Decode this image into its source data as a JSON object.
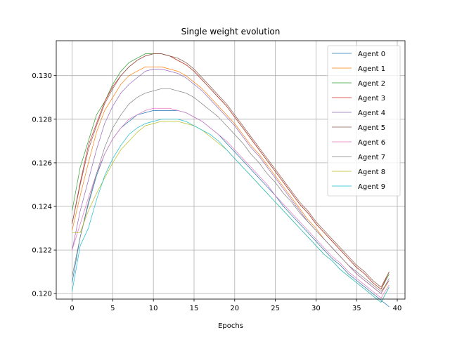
{
  "chart_data": {
    "type": "line",
    "title": "Single weight evolution",
    "xlabel": "Epochs",
    "ylabel": "",
    "xlim": [
      -1.95,
      40.95
    ],
    "ylim": [
      0.11975,
      0.1316
    ],
    "xticks": [
      0,
      5,
      10,
      15,
      20,
      25,
      30,
      35,
      40
    ],
    "yticks": [
      0.12,
      0.122,
      0.124,
      0.126,
      0.128,
      0.13
    ],
    "ytick_labels": [
      "0.120",
      "0.122",
      "0.124",
      "0.126",
      "0.128",
      "0.130"
    ],
    "grid": true,
    "legend_position": "upper right",
    "x": [
      0,
      1,
      2,
      3,
      4,
      5,
      6,
      7,
      8,
      9,
      10,
      11,
      12,
      13,
      14,
      15,
      16,
      17,
      18,
      19,
      20,
      21,
      22,
      23,
      24,
      25,
      26,
      27,
      28,
      29,
      30,
      31,
      32,
      33,
      34,
      35,
      36,
      37,
      38,
      39
    ],
    "series": [
      {
        "name": "Agent 0",
        "color": "#1f77b4",
        "values": [
          0.1205,
          0.1226,
          0.1241,
          0.1254,
          0.1264,
          0.1271,
          0.1276,
          0.1279,
          0.1282,
          0.1283,
          0.1284,
          0.1284,
          0.1284,
          0.1284,
          0.1283,
          0.1281,
          0.1279,
          0.1276,
          0.1273,
          0.1269,
          0.1265,
          0.1261,
          0.1257,
          0.1253,
          0.1249,
          0.1245,
          0.124,
          0.1236,
          0.1232,
          0.1228,
          0.1224,
          0.122,
          0.1216,
          0.1213,
          0.1209,
          0.1206,
          0.1203,
          0.12,
          0.1197,
          0.1194
        ]
      },
      {
        "name": "Agent 1",
        "color": "#ff7f0e",
        "values": [
          0.1229,
          0.1245,
          0.126,
          0.1274,
          0.1284,
          0.129,
          0.1296,
          0.13,
          0.1302,
          0.1304,
          0.1304,
          0.1304,
          0.1303,
          0.1302,
          0.13,
          0.1297,
          0.1294,
          0.129,
          0.1286,
          0.1282,
          0.1278,
          0.1273,
          0.1268,
          0.1264,
          0.1259,
          0.1254,
          0.1249,
          0.1244,
          0.1239,
          0.1234,
          0.123,
          0.1225,
          0.1221,
          0.1217,
          0.1213,
          0.1209,
          0.1206,
          0.1203,
          0.12,
          0.1206
        ]
      },
      {
        "name": "Agent 2",
        "color": "#2ca02c",
        "values": [
          0.1238,
          0.1258,
          0.127,
          0.1282,
          0.1288,
          0.1296,
          0.1302,
          0.1306,
          0.1308,
          0.131,
          0.131,
          0.131,
          0.1309,
          0.1307,
          0.1305,
          0.1302,
          0.1298,
          0.1294,
          0.129,
          0.1286,
          0.1281,
          0.1276,
          0.1271,
          0.1266,
          0.1261,
          0.1256,
          0.1251,
          0.1246,
          0.1241,
          0.1237,
          0.1232,
          0.1228,
          0.1224,
          0.122,
          0.1216,
          0.1212,
          0.1209,
          0.1205,
          0.1202,
          0.1209
        ]
      },
      {
        "name": "Agent 3",
        "color": "#d62728",
        "values": [
          0.1232,
          0.1251,
          0.1268,
          0.1278,
          0.1288,
          0.1295,
          0.13,
          0.1304,
          0.1307,
          0.1309,
          0.131,
          0.131,
          0.1309,
          0.1307,
          0.1305,
          0.1302,
          0.1298,
          0.1294,
          0.129,
          0.1286,
          0.1281,
          0.1276,
          0.1271,
          0.1266,
          0.1261,
          0.1256,
          0.1251,
          0.1246,
          0.1241,
          0.1237,
          0.1232,
          0.1228,
          0.1224,
          0.122,
          0.1216,
          0.1212,
          0.1209,
          0.1205,
          0.1202,
          0.121
        ]
      },
      {
        "name": "Agent 4",
        "color": "#9467bd",
        "values": [
          0.122,
          0.1238,
          0.1252,
          0.1266,
          0.1278,
          0.1286,
          0.1292,
          0.1296,
          0.1299,
          0.1302,
          0.1303,
          0.1303,
          0.1302,
          0.1301,
          0.1299,
          0.1296,
          0.1293,
          0.1289,
          0.1285,
          0.1281,
          0.1277,
          0.1272,
          0.1267,
          0.1263,
          0.1258,
          0.1253,
          0.1248,
          0.1243,
          0.1238,
          0.1233,
          0.1229,
          0.1225,
          0.1221,
          0.1217,
          0.1213,
          0.1209,
          0.1206,
          0.1203,
          0.12,
          0.1207
        ]
      },
      {
        "name": "Agent 5",
        "color": "#8c564b",
        "values": [
          0.1232,
          0.125,
          0.1266,
          0.1277,
          0.1287,
          0.1294,
          0.13,
          0.1304,
          0.1307,
          0.1309,
          0.131,
          0.131,
          0.1309,
          0.1308,
          0.1306,
          0.1303,
          0.1299,
          0.1295,
          0.1291,
          0.1287,
          0.1282,
          0.1277,
          0.1272,
          0.1267,
          0.1262,
          0.1257,
          0.1252,
          0.1247,
          0.1242,
          0.1238,
          0.1233,
          0.1229,
          0.1225,
          0.1221,
          0.1217,
          0.1213,
          0.121,
          0.1206,
          0.1203,
          0.121
        ]
      },
      {
        "name": "Agent 6",
        "color": "#e377c2",
        "values": [
          0.122,
          0.1232,
          0.1244,
          0.1255,
          0.1264,
          0.1271,
          0.1276,
          0.128,
          0.1282,
          0.1284,
          0.1285,
          0.1285,
          0.1285,
          0.1284,
          0.1283,
          0.1281,
          0.1279,
          0.1276,
          0.1273,
          0.127,
          0.1266,
          0.1262,
          0.1258,
          0.1254,
          0.125,
          0.1245,
          0.1241,
          0.1237,
          0.1233,
          0.1229,
          0.1225,
          0.1221,
          0.1217,
          0.1214,
          0.121,
          0.1207,
          0.1204,
          0.1201,
          0.1198,
          0.1204
        ]
      },
      {
        "name": "Agent 7",
        "color": "#7f7f7f",
        "values": [
          0.1208,
          0.1226,
          0.1242,
          0.1255,
          0.1267,
          0.1276,
          0.1282,
          0.1287,
          0.129,
          0.1292,
          0.1293,
          0.1294,
          0.1294,
          0.1293,
          0.1292,
          0.129,
          0.1287,
          0.1284,
          0.1281,
          0.1277,
          0.1273,
          0.1269,
          0.1264,
          0.126,
          0.1255,
          0.1251,
          0.1246,
          0.1242,
          0.1237,
          0.1233,
          0.1229,
          0.1225,
          0.1221,
          0.1217,
          0.1213,
          0.121,
          0.1207,
          0.1204,
          0.1201,
          0.1206
        ]
      },
      {
        "name": "Agent 8",
        "color": "#bcbd22",
        "values": [
          0.1228,
          0.1228,
          0.1238,
          0.1246,
          0.1253,
          0.126,
          0.1266,
          0.127,
          0.1274,
          0.1277,
          0.1278,
          0.1279,
          0.1279,
          0.1279,
          0.1278,
          0.1277,
          0.1275,
          0.1272,
          0.1269,
          0.1266,
          0.1262,
          0.1258,
          0.1254,
          0.125,
          0.1246,
          0.1242,
          0.1238,
          0.1234,
          0.123,
          0.1226,
          0.1222,
          0.1218,
          0.1215,
          0.1211,
          0.1208,
          0.1205,
          0.1202,
          0.1199,
          0.1196,
          0.1203
        ]
      },
      {
        "name": "Agent 9",
        "color": "#17becf",
        "values": [
          0.1201,
          0.1222,
          0.123,
          0.1243,
          0.1254,
          0.1262,
          0.1268,
          0.1273,
          0.1276,
          0.1278,
          0.1279,
          0.128,
          0.128,
          0.128,
          0.1279,
          0.1277,
          0.1275,
          0.1273,
          0.127,
          0.1266,
          0.1262,
          0.1258,
          0.1254,
          0.125,
          0.1246,
          0.1242,
          0.1238,
          0.1234,
          0.123,
          0.1226,
          0.1222,
          0.1218,
          0.1215,
          0.1211,
          0.1208,
          0.1205,
          0.1202,
          0.1199,
          0.1196,
          0.1203
        ]
      }
    ]
  }
}
